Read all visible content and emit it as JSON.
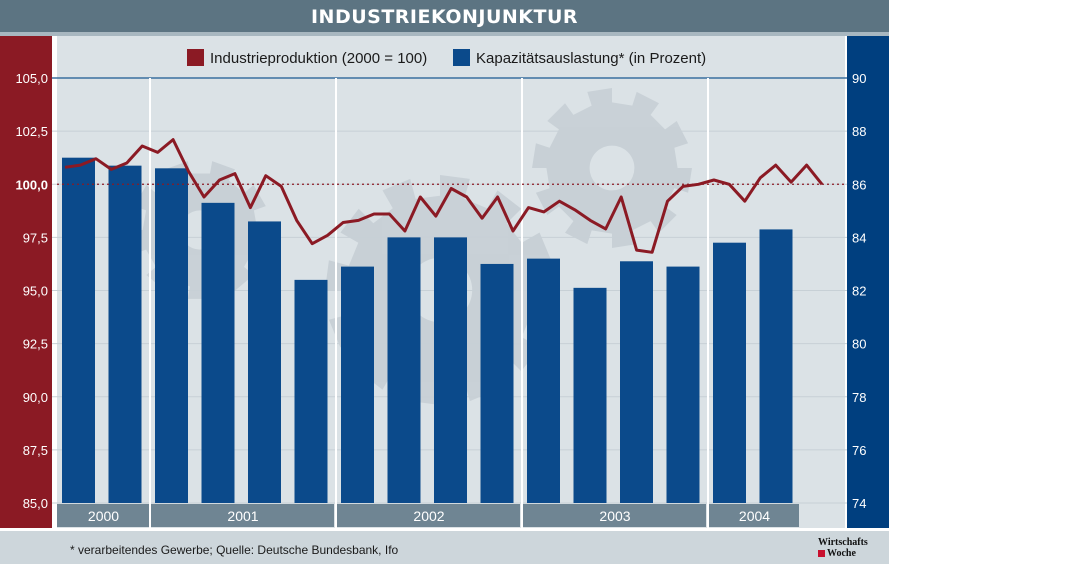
{
  "title": "INDUSTRIEKONJUNKTUR",
  "footer_note": "* verarbeitendes Gewerbe; Quelle: Deutsche Bundesbank, Ifo",
  "logo": {
    "line1": "Wirtschafts",
    "line2": "Woche"
  },
  "colors": {
    "line": "#8b1a24",
    "bar": "#0b4a8b",
    "left_axis": "#8b1a24",
    "right_axis": "#003f7f",
    "plot_bg": "#dbe2e6",
    "title_bg": "#5c7482"
  },
  "chart_data": {
    "type": "bar",
    "title": "INDUSTRIEKONJUNKTUR",
    "legend": [
      {
        "name": "Industrieproduktion (2000 = 100)",
        "kind": "line",
        "color": "#8b1a24"
      },
      {
        "name": "Kapazitätsauslastung* (in Prozent)",
        "kind": "bar",
        "color": "#0b4a8b"
      }
    ],
    "legend_placement": "top",
    "grid": true,
    "reference_line": {
      "axis": "left",
      "value": 100.0,
      "style": "dotted"
    },
    "left_axis": {
      "min": 85.0,
      "max": 105.0,
      "ticks": [
        "85,0",
        "87,5",
        "90,0",
        "92,5",
        "95,0",
        "97,5",
        "100,0",
        "102,5",
        "105,0"
      ],
      "tick_values": [
        85,
        87.5,
        90,
        92.5,
        95,
        97.5,
        100,
        102.5,
        105
      ]
    },
    "right_axis": {
      "min": 74,
      "max": 90,
      "ticks": [
        "74",
        "76",
        "78",
        "80",
        "82",
        "84",
        "86",
        "88",
        "90"
      ],
      "tick_values": [
        74,
        76,
        78,
        80,
        82,
        84,
        86,
        88,
        90
      ]
    },
    "years": [
      {
        "label": "2000",
        "quarters": 2
      },
      {
        "label": "2001",
        "quarters": 4
      },
      {
        "label": "2002",
        "quarters": 4
      },
      {
        "label": "2003",
        "quarters": 4
      },
      {
        "label": "2004",
        "quarters": 2
      }
    ],
    "series": [
      {
        "name": "Kapazitätsauslastung* (in Prozent)",
        "axis": "right",
        "type": "bar",
        "values": [
          87.0,
          86.7,
          86.6,
          85.3,
          84.6,
          82.4,
          82.9,
          84.0,
          84.0,
          83.0,
          83.2,
          82.1,
          83.1,
          82.9,
          83.8,
          84.3
        ]
      },
      {
        "name": "Industrieproduktion (2000 = 100)",
        "axis": "left",
        "type": "line",
        "values": [
          100.8,
          100.9,
          101.2,
          100.7,
          101.0,
          101.8,
          101.5,
          102.1,
          100.6,
          99.4,
          100.2,
          100.5,
          98.9,
          100.4,
          99.9,
          98.3,
          97.2,
          97.6,
          98.2,
          98.3,
          98.6,
          98.6,
          97.8,
          99.4,
          98.5,
          99.8,
          99.4,
          98.4,
          99.4,
          97.8,
          98.9,
          98.7,
          99.2,
          98.8,
          98.3,
          97.9,
          99.4,
          96.9,
          96.8,
          99.2,
          99.9,
          100.0,
          100.2,
          100.0,
          99.2,
          100.3,
          100.9,
          100.1,
          100.9,
          100.0
        ]
      }
    ]
  }
}
